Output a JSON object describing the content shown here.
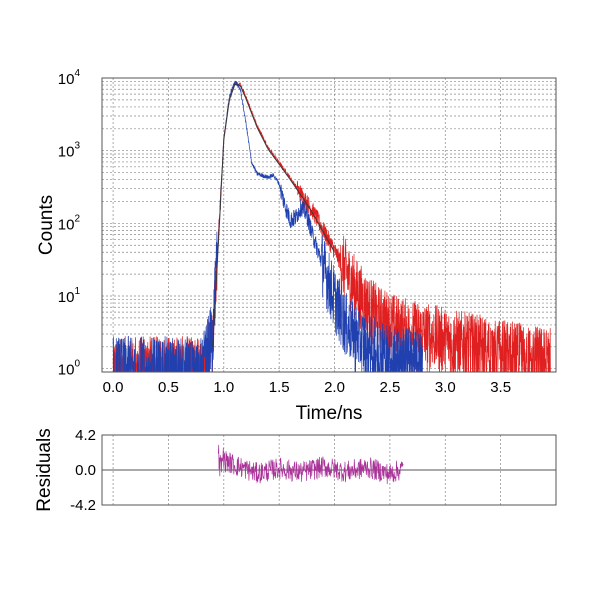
{
  "chart_data": [
    {
      "type": "line",
      "xlabel": "Time/ns",
      "ylabel": "Counts",
      "xlim": [
        -0.1,
        4.0
      ],
      "ylim": [
        0.9,
        10000
      ],
      "yscale": "log",
      "grid": true,
      "x_ticks": [
        0.0,
        0.5,
        1.0,
        1.5,
        2.0,
        2.5,
        3.0,
        3.5
      ],
      "x_tick_labels": [
        "0.0",
        "0.5",
        "1.0",
        "1.5",
        "2.0",
        "2.5",
        "3.0",
        "3.5"
      ],
      "y_tick_labels": [
        {
          "base": "10",
          "exp": "0"
        },
        {
          "base": "10",
          "exp": "1"
        },
        {
          "base": "10",
          "exp": "2"
        },
        {
          "base": "10",
          "exp": "3"
        },
        {
          "base": "10",
          "exp": "4"
        }
      ],
      "series": [
        {
          "color": "#e02020",
          "x": [
            0.0,
            0.5,
            0.8,
            0.9,
            0.95,
            1.0,
            1.05,
            1.1,
            1.15,
            1.2,
            1.3,
            1.4,
            1.5,
            1.6,
            1.7,
            1.8,
            1.9,
            2.0,
            2.1,
            2.2,
            2.3,
            2.4,
            2.6,
            2.8,
            3.0,
            3.3,
            3.6,
            3.95
          ],
          "y": [
            1,
            1,
            1,
            3,
            60,
            1500,
            5000,
            8500,
            8000,
            5500,
            2200,
            1100,
            680,
            420,
            250,
            150,
            80,
            42,
            22,
            12,
            7,
            5,
            3.5,
            3,
            2.5,
            2,
            1.6,
            1.3
          ]
        },
        {
          "color": "#2040b0",
          "x": [
            0.0,
            0.5,
            0.8,
            0.9,
            0.95,
            1.0,
            1.05,
            1.1,
            1.15,
            1.2,
            1.25,
            1.3,
            1.4,
            1.45,
            1.5,
            1.55,
            1.6,
            1.65,
            1.7,
            1.75,
            1.8,
            1.9,
            2.0,
            2.1,
            2.3,
            2.5,
            2.8
          ],
          "y": [
            1,
            1,
            1,
            3,
            60,
            1500,
            5500,
            9000,
            7000,
            2400,
            700,
            480,
            430,
            460,
            350,
            180,
            110,
            120,
            170,
            130,
            70,
            25,
            9,
            4,
            2,
            1.5,
            1.2
          ]
        },
        {
          "color": "#3a3a3a",
          "x": [
            0.9,
            0.95,
            1.0,
            1.05,
            1.1,
            1.15,
            1.2,
            1.3,
            1.4,
            1.5,
            1.6,
            1.7,
            1.8,
            1.9,
            2.0
          ],
          "y": [
            2,
            50,
            1400,
            5000,
            8200,
            7800,
            5200,
            2100,
            1050,
            650,
            400,
            240,
            140,
            75,
            40
          ]
        }
      ]
    },
    {
      "type": "line",
      "ylabel": "Residuals",
      "xlim": [
        -0.1,
        4.0
      ],
      "ylim": [
        -4.2,
        4.2
      ],
      "grid": true,
      "y_ticks": [
        4.2,
        0.0,
        -4.2
      ],
      "y_tick_labels": [
        "4.2",
        "0.0",
        "-4.2"
      ],
      "series": [
        {
          "color": "#aa3399",
          "x": [
            0.95,
            1.1,
            1.3,
            1.5,
            1.7,
            1.9,
            2.1,
            2.3,
            2.5,
            2.62
          ],
          "y": [
            1.5,
            0.6,
            -0.4,
            0.2,
            -0.3,
            0.4,
            -0.2,
            0.3,
            -0.5,
            0.2
          ]
        }
      ],
      "zero_line": true
    }
  ],
  "colors": {
    "axis": "#555555",
    "grid": "#888888",
    "zero_line": "#555555"
  }
}
